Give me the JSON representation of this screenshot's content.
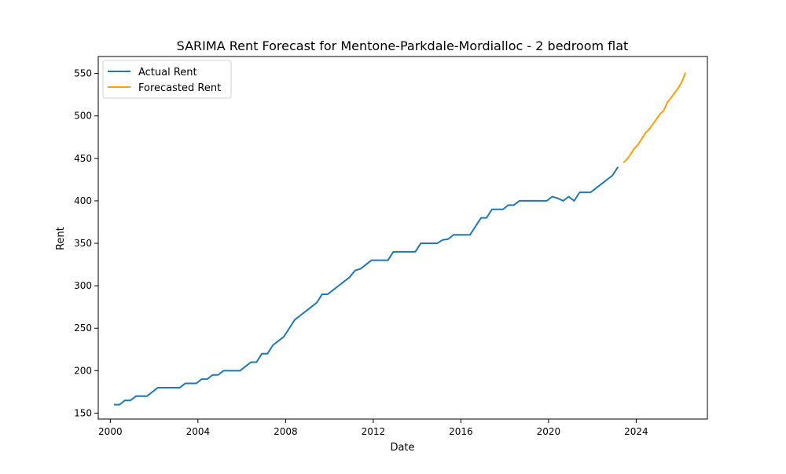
{
  "chart_data": {
    "type": "line",
    "title": "SARIMA Rent Forecast for Mentone-Parkdale-Mordialloc - 2 bedroom flat",
    "xlabel": "Date",
    "ylabel": "Rent",
    "xlim": [
      1999.45,
      2027.25
    ],
    "ylim": [
      143,
      570
    ],
    "xticks": [
      2000,
      2004,
      2008,
      2012,
      2016,
      2020,
      2024
    ],
    "yticks": [
      150,
      200,
      250,
      300,
      350,
      400,
      450,
      500,
      550
    ],
    "grid": false,
    "legend_position": "top-left",
    "colors": {
      "actual": "#1f77b4",
      "forecast": "#ff9f00"
    },
    "series": [
      {
        "name": "Actual Rent",
        "key": "actual",
        "x": [
          2000.17,
          2000.42,
          2000.67,
          2000.92,
          2001.17,
          2001.42,
          2001.67,
          2001.92,
          2002.17,
          2002.42,
          2002.67,
          2002.92,
          2003.17,
          2003.42,
          2003.67,
          2003.92,
          2004.17,
          2004.42,
          2004.67,
          2004.92,
          2005.17,
          2005.42,
          2005.67,
          2005.92,
          2006.17,
          2006.42,
          2006.67,
          2006.92,
          2007.17,
          2007.42,
          2007.67,
          2007.92,
          2008.17,
          2008.42,
          2008.67,
          2008.92,
          2009.17,
          2009.42,
          2009.67,
          2009.92,
          2010.17,
          2010.42,
          2010.67,
          2010.92,
          2011.17,
          2011.42,
          2011.67,
          2011.92,
          2012.17,
          2012.42,
          2012.67,
          2012.92,
          2013.17,
          2013.42,
          2013.67,
          2013.92,
          2014.17,
          2014.42,
          2014.67,
          2014.92,
          2015.17,
          2015.42,
          2015.67,
          2015.92,
          2016.17,
          2016.42,
          2016.67,
          2016.92,
          2017.17,
          2017.42,
          2017.67,
          2017.92,
          2018.17,
          2018.42,
          2018.67,
          2018.92,
          2019.17,
          2019.42,
          2019.67,
          2019.92,
          2020.17,
          2020.42,
          2020.67,
          2020.92,
          2021.17,
          2021.42,
          2021.67,
          2021.92,
          2022.17,
          2022.42,
          2022.67,
          2022.92,
          2023.17
        ],
        "y": [
          160,
          160,
          165,
          165,
          170,
          170,
          170,
          175,
          180,
          180,
          180,
          180,
          180,
          185,
          185,
          185,
          190,
          190,
          195,
          195,
          200,
          200,
          200,
          200,
          205,
          210,
          210,
          220,
          220,
          230,
          235,
          240,
          250,
          260,
          265,
          270,
          275,
          280,
          290,
          290,
          295,
          300,
          305,
          310,
          318,
          320,
          325,
          330,
          330,
          330,
          330,
          340,
          340,
          340,
          340,
          340,
          350,
          350,
          350,
          350,
          354,
          355,
          360,
          360,
          360,
          360,
          370,
          380,
          380,
          390,
          390,
          390,
          395,
          395,
          400,
          400,
          400,
          400,
          400,
          400,
          405,
          403,
          400,
          405,
          400,
          410,
          410,
          410,
          415,
          420,
          425,
          430,
          440
        ]
      },
      {
        "name": "Forecasted Rent",
        "key": "forecast",
        "x": [
          2023.42,
          2023.58,
          2023.75,
          2023.92,
          2024.08,
          2024.25,
          2024.42,
          2024.58,
          2024.75,
          2024.92,
          2025.08,
          2025.25,
          2025.42,
          2025.58,
          2025.75,
          2025.92,
          2026.08,
          2026.25
        ],
        "y": [
          445,
          449,
          455,
          462,
          466,
          473,
          480,
          484,
          490,
          496,
          502,
          506,
          516,
          521,
          527,
          533,
          540,
          551
        ]
      }
    ]
  }
}
